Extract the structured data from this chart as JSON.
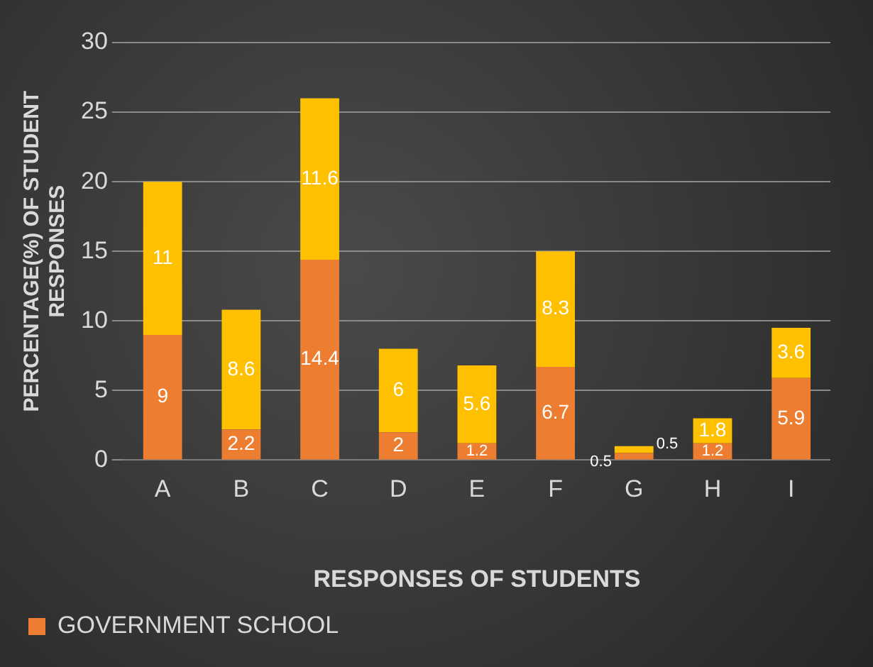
{
  "chart_data": {
    "type": "bar",
    "stacked": true,
    "xlabel": "RESPONSES OF STUDENTS",
    "ylabel": "PERCENTAGE(%) OF STUDENT RESPONSES",
    "categories": [
      "A",
      "B",
      "C",
      "D",
      "E",
      "F",
      "G",
      "H",
      "I"
    ],
    "series": [
      {
        "name": "GOVERNMENT SCHOOL",
        "color": "#ed7d31",
        "values": [
          9,
          2.2,
          14.4,
          2,
          1.2,
          6.7,
          0.5,
          1.2,
          5.9
        ]
      },
      {
        "color": "#ffc000",
        "values": [
          11,
          8.6,
          11.6,
          6,
          5.6,
          8.3,
          0.5,
          1.8,
          3.6
        ]
      }
    ],
    "ylim": [
      0,
      30
    ],
    "yticks": [
      0,
      5,
      10,
      15,
      20,
      25,
      30
    ],
    "grid": "y",
    "legend": "bottom",
    "data_labels": true
  }
}
